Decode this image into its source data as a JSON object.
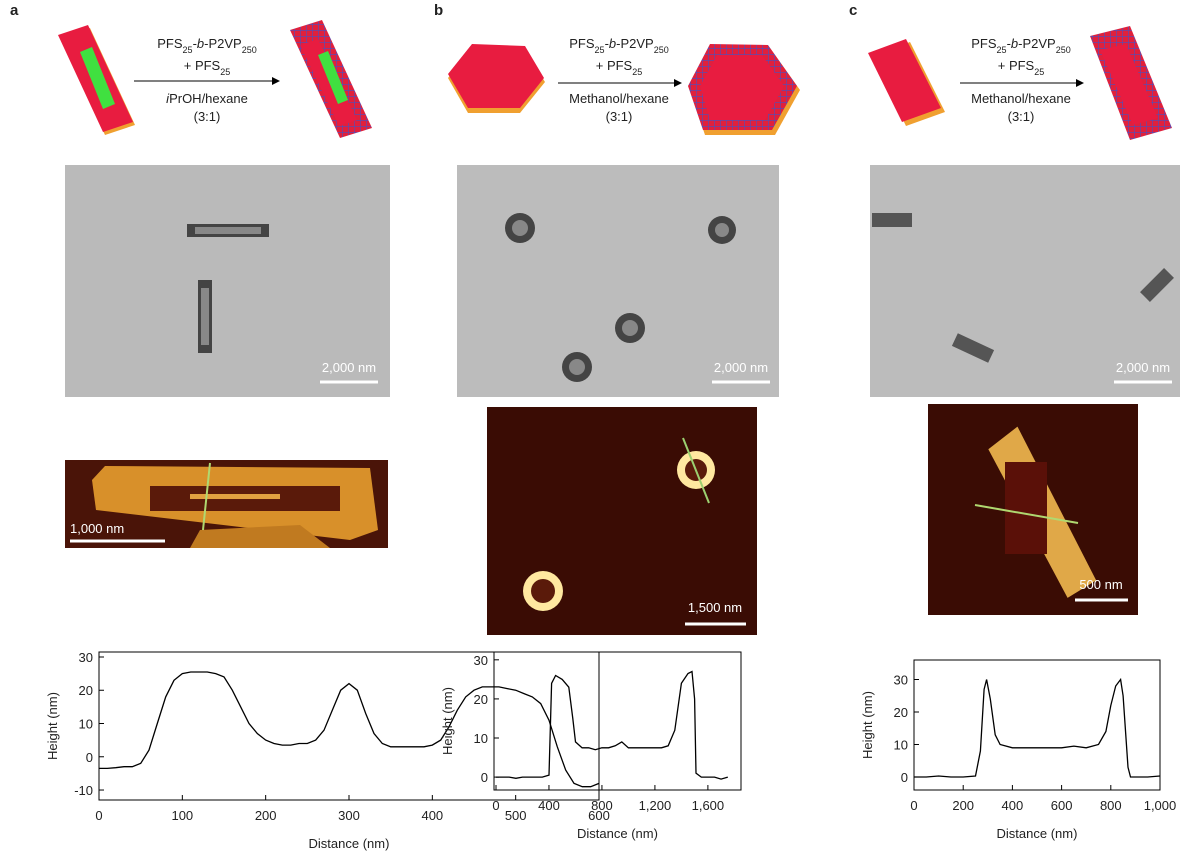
{
  "panels": [
    {
      "label": "a",
      "reagent": [
        {
          "text": "PFS"
        },
        {
          "text": "25",
          "sub": true
        },
        {
          "text": "-"
        },
        {
          "text": "b",
          "italic": true
        },
        {
          "text": "-P2VP"
        },
        {
          "text": "250",
          "sub": true
        }
      ],
      "additive": [
        {
          "text": "+ PFS"
        },
        {
          "text": "25",
          "sub": true
        }
      ],
      "solvent": [
        {
          "text": "i",
          "italic": true
        },
        {
          "text": "PrOH/hexane"
        }
      ],
      "ratio": "(3:1)",
      "tem_scale": "2,000 nm",
      "afm_scale": "1,000 nm"
    },
    {
      "label": "b",
      "reagent": [
        {
          "text": "PFS"
        },
        {
          "text": "25",
          "sub": true
        },
        {
          "text": "-"
        },
        {
          "text": "b",
          "italic": true
        },
        {
          "text": "-P2VP"
        },
        {
          "text": "250",
          "sub": true
        }
      ],
      "additive": [
        {
          "text": "+ PFS"
        },
        {
          "text": "25",
          "sub": true
        }
      ],
      "solvent": [
        {
          "text": "Methanol/hexane"
        }
      ],
      "ratio": "(3:1)",
      "tem_scale": "2,000 nm",
      "afm_scale": "1,500 nm"
    },
    {
      "label": "c",
      "reagent": [
        {
          "text": "PFS"
        },
        {
          "text": "25",
          "sub": true
        },
        {
          "text": "-"
        },
        {
          "text": "b",
          "italic": true
        },
        {
          "text": "-P2VP"
        },
        {
          "text": "250",
          "sub": true
        }
      ],
      "additive": [
        {
          "text": "+ PFS"
        },
        {
          "text": "25",
          "sub": true
        }
      ],
      "solvent": [
        {
          "text": "Methanol/hexane"
        }
      ],
      "ratio": "(3:1)",
      "tem_scale": "2,000 nm",
      "afm_scale": "500 nm"
    }
  ],
  "chart_data": [
    {
      "type": "line",
      "color": "#000000",
      "xlabel": "Distance (nm)",
      "ylabel": "Height (nm)",
      "x": [
        0,
        10,
        20,
        30,
        40,
        50,
        60,
        70,
        80,
        90,
        100,
        110,
        120,
        130,
        140,
        150,
        160,
        170,
        180,
        190,
        200,
        210,
        220,
        230,
        240,
        250,
        260,
        270,
        280,
        290,
        300,
        310,
        320,
        330,
        340,
        350,
        360,
        370,
        380,
        390,
        400,
        410,
        420,
        430,
        440,
        450,
        460,
        470,
        480,
        490,
        500,
        510,
        520,
        530,
        540,
        550,
        560,
        570,
        580,
        590,
        600
      ],
      "values": [
        -3.5,
        -3.5,
        -3.3,
        -3,
        -3,
        -2,
        2,
        10,
        18,
        23,
        25,
        25.5,
        25.5,
        25.5,
        25,
        24,
        20,
        15,
        10,
        7,
        5,
        4,
        3.5,
        3.5,
        4,
        4,
        5,
        8,
        14,
        20,
        22,
        20,
        13,
        7,
        4,
        3,
        3,
        3,
        3,
        3,
        3.5,
        5,
        9,
        14,
        18,
        20,
        21,
        21,
        21,
        20.5,
        20,
        19,
        18,
        16,
        11,
        3,
        -4,
        -8,
        -9,
        -9,
        -8
      ],
      "xlim": [
        0,
        600
      ],
      "xticks": [
        0,
        100,
        200,
        300,
        400,
        500,
        600
      ],
      "ylim": [
        -13,
        31.5
      ],
      "yticks": [
        -10,
        0,
        10,
        20,
        30
      ]
    },
    {
      "type": "line",
      "color": "#000000",
      "xlabel": "Distance (nm)",
      "ylabel": "Height (nm)",
      "x": [
        0,
        50,
        100,
        150,
        200,
        250,
        300,
        350,
        400,
        420,
        450,
        500,
        550,
        580,
        600,
        650,
        700,
        750,
        800,
        850,
        900,
        950,
        1000,
        1050,
        1100,
        1150,
        1200,
        1250,
        1300,
        1350,
        1400,
        1450,
        1480,
        1500,
        1510,
        1550,
        1600,
        1650,
        1700,
        1750
      ],
      "values": [
        0,
        0,
        0,
        -0.3,
        0,
        0,
        0,
        0,
        0.5,
        24,
        26,
        25,
        23,
        15,
        9,
        7.5,
        7.5,
        7,
        7.5,
        7.5,
        8,
        9,
        7.5,
        7.5,
        7.5,
        7.5,
        7.5,
        7.5,
        8,
        12,
        24,
        26.5,
        27,
        20,
        1,
        0,
        0,
        0,
        -0.5,
        0
      ],
      "xlim": [
        -15,
        1850
      ],
      "xticks": [
        0,
        400,
        800,
        {
          "value": 1200,
          "label": "1,200"
        },
        {
          "value": 1600,
          "label": "1,600"
        }
      ],
      "ylim": [
        -3.3,
        32
      ],
      "yticks": [
        0,
        10,
        20,
        30
      ]
    },
    {
      "type": "line",
      "color": "#000000",
      "xlabel": "Distance (nm)",
      "ylabel": "Height (nm)",
      "x": [
        0,
        50,
        100,
        150,
        200,
        250,
        270,
        285,
        295,
        310,
        330,
        350,
        400,
        450,
        500,
        550,
        600,
        650,
        700,
        750,
        780,
        800,
        820,
        840,
        850,
        870,
        880,
        900,
        950,
        1000
      ],
      "values": [
        0,
        0,
        0.3,
        0,
        0,
        0.3,
        8,
        27,
        30,
        24,
        13,
        10,
        9,
        9,
        9,
        9,
        9,
        9.5,
        9,
        10,
        14,
        22,
        28,
        30,
        25,
        3,
        0,
        0,
        0,
        0.3
      ],
      "xlim": [
        0,
        1000
      ],
      "xticks": [
        0,
        200,
        400,
        600,
        800,
        {
          "value": 1000,
          "label": "1,000"
        }
      ],
      "ylim": [
        -4,
        36
      ],
      "yticks": [
        0,
        10,
        20,
        30
      ]
    }
  ]
}
